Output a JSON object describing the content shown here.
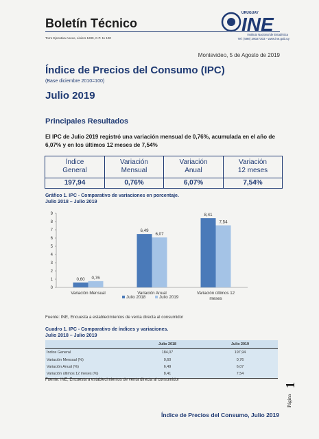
{
  "header": {
    "bulletin_title": "Boletín Técnico",
    "address": "Torre Ejecutiva Anexo, Liniers 1280, C.P. 11 100",
    "logo_top": "URUGUAY",
    "logo_text": "INE",
    "logo_institution": "Instituto Nacional de Estadística",
    "contact": "Tel: (598) 29027303 - www.ine.gub.uy"
  },
  "date": "Montevideo, 5 de Agosto de 2019",
  "title": "Índice de Precios del Consumo (IPC)",
  "base": "(Base diciembre 2010=100)",
  "period": "Julio 2019",
  "section_title": "Principales Resultados",
  "summary": {
    "p1": "El IPC de ",
    "p1_bold": "Julio 2019",
    "p2": " registró una variación mensual de 0,76%, acumulada en el año de 6,07% y en los últimos 12 meses de 7,54%"
  },
  "key_table": [
    {
      "header1": "Índice",
      "header2": "General",
      "value": "197,94"
    },
    {
      "header1": "Variación",
      "header2": "Mensual",
      "value": "0,76%"
    },
    {
      "header1": "Variación",
      "header2": "Anual",
      "value": "6,07%"
    },
    {
      "header1": "Variación",
      "header2": "12 meses",
      "value": "7,54%"
    }
  ],
  "chart_title_line1": "Gráfico 1. IPC - Comparativo de variaciones en porcentaje.",
  "chart_title_line2": "Julio 2018 – Julio 2019",
  "chart_data": {
    "type": "bar",
    "categories": [
      "Variación Mensual",
      "Variación Anual",
      "Variación últimos 12 meses"
    ],
    "series": [
      {
        "name": "Julio 2018",
        "values": [
          0.6,
          6.49,
          8.41
        ],
        "labels": [
          "0,60",
          "6,49",
          "8,41"
        ],
        "color": "#4a7ab9"
      },
      {
        "name": "Julio 2019",
        "values": [
          0.76,
          6.07,
          7.54
        ],
        "labels": [
          "0,76",
          "6,07",
          "7,54"
        ],
        "color": "#a4c3e6"
      }
    ],
    "ylim": [
      0,
      9
    ],
    "yticks": [
      "0",
      "1",
      "2",
      "3",
      "4",
      "5",
      "6",
      "7",
      "8",
      "9"
    ],
    "legend": "bottom"
  },
  "source1": "Fuente: INE, Encuesta a establecimientos de venta directa al consumidor",
  "table_title_line1": "Cuadro 1. IPC - Comparativo de índices y variaciones.",
  "table_title_line2": "Julio 2018 – Julio 2019",
  "results_table": {
    "columns": [
      "",
      "Julio 2018",
      "Julio 2019"
    ],
    "rows": [
      [
        "Índice General",
        "184,07",
        "197,94"
      ],
      [
        "Variación Mensual (%)",
        "0,60",
        "0,76"
      ],
      [
        "Variación  Anual (%)",
        "6,49",
        "6,07"
      ],
      [
        "Variación últimos 12 meses (%)",
        "8,41",
        "7,54"
      ]
    ]
  },
  "source2": "Fuente: INE, Encuesta a establecimientos de venta directa al consumidor",
  "page_label": "Página",
  "page_number": "1",
  "footer_title": "Índice de Precios del Consumo, Julio 2019"
}
